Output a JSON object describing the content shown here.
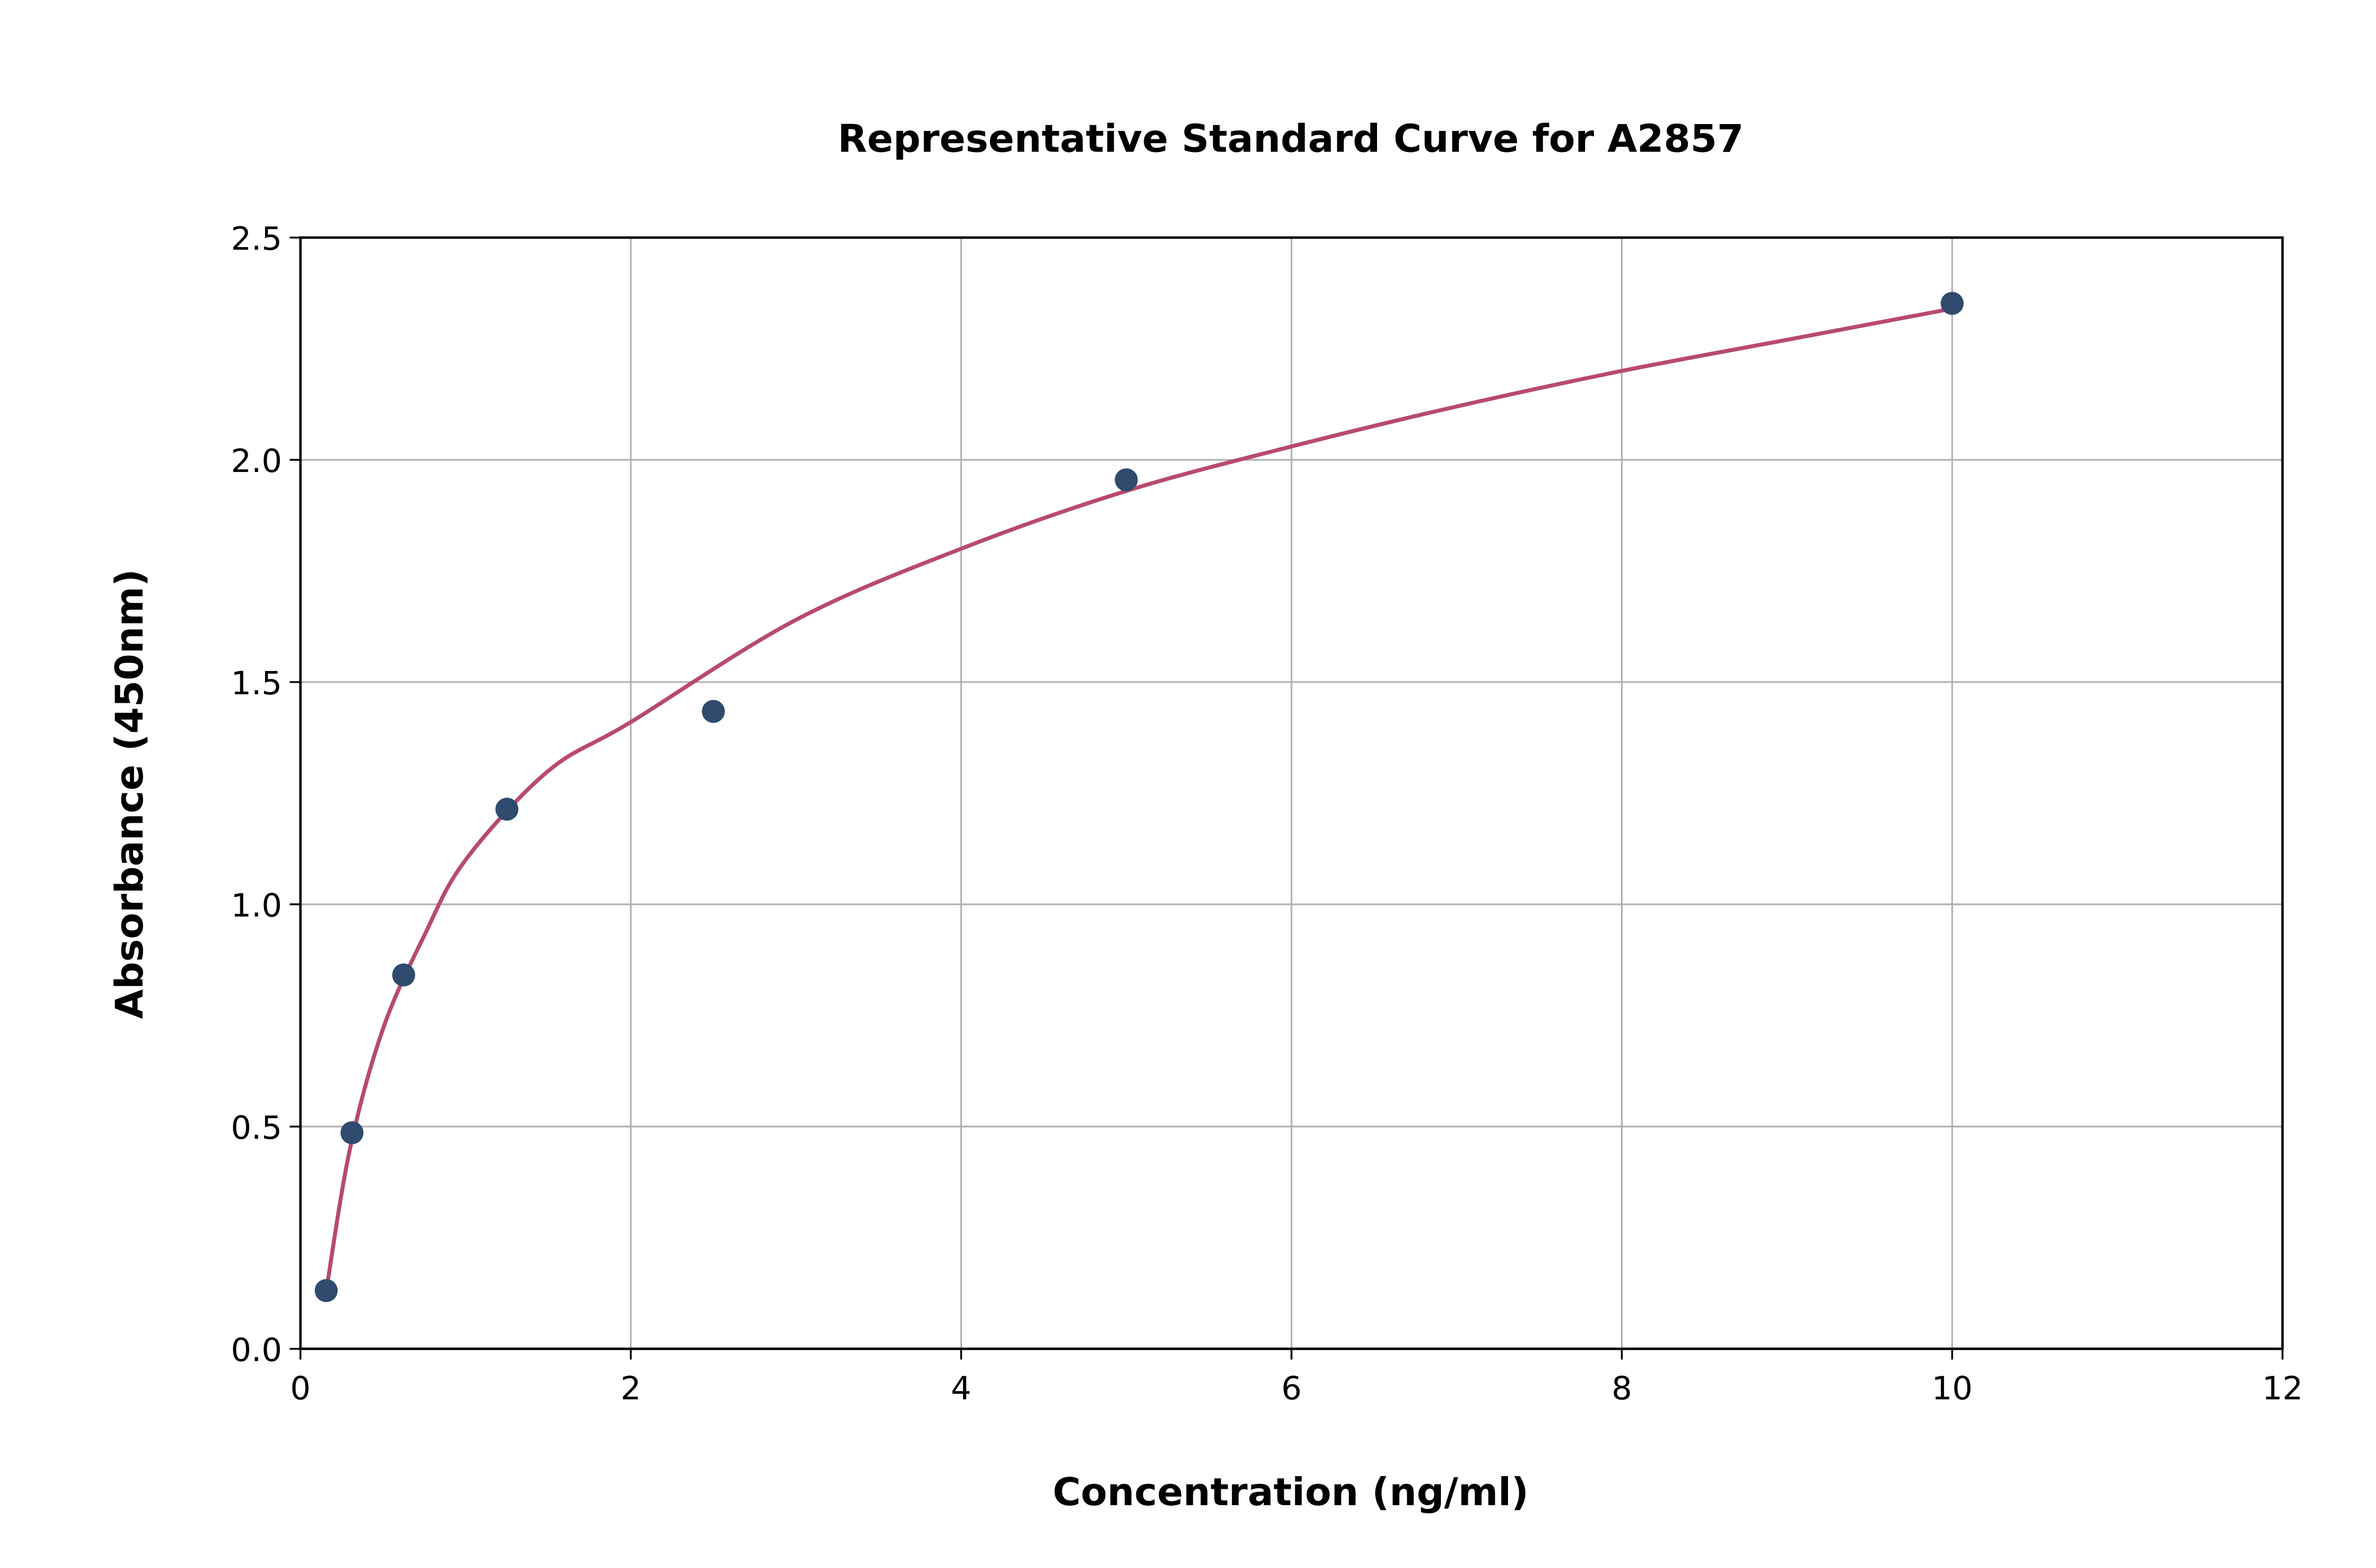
{
  "chart_data": {
    "type": "scatter",
    "title": "Representative Standard Curve for A2857",
    "xlabel": "Concentration (ng/ml)",
    "ylabel": "Absorbance (450nm)",
    "xlim": [
      0,
      12
    ],
    "ylim": [
      0,
      2.5
    ],
    "xticks": [
      "0",
      "2",
      "4",
      "6",
      "8",
      "10",
      "12"
    ],
    "yticks": [
      "0.0",
      "0.5",
      "1.0",
      "1.5",
      "2.0",
      "2.5"
    ],
    "grid": true,
    "points": {
      "x": [
        0.156,
        0.312,
        0.625,
        1.25,
        2.5,
        5,
        10
      ],
      "y": [
        0.131,
        0.486,
        0.841,
        1.214,
        1.434,
        1.955,
        2.352
      ],
      "color": "#2f4b6e"
    },
    "fit_curve": {
      "x": [
        0.156,
        0.3,
        0.5,
        0.75,
        1,
        1.5,
        2,
        3,
        4,
        5,
        6,
        7,
        8,
        9,
        10
      ],
      "y": [
        0.13,
        0.45,
        0.72,
        0.93,
        1.1,
        1.3,
        1.41,
        1.64,
        1.8,
        1.93,
        2.03,
        2.12,
        2.2,
        2.27,
        2.34
      ],
      "color": "#b84a6f"
    }
  }
}
